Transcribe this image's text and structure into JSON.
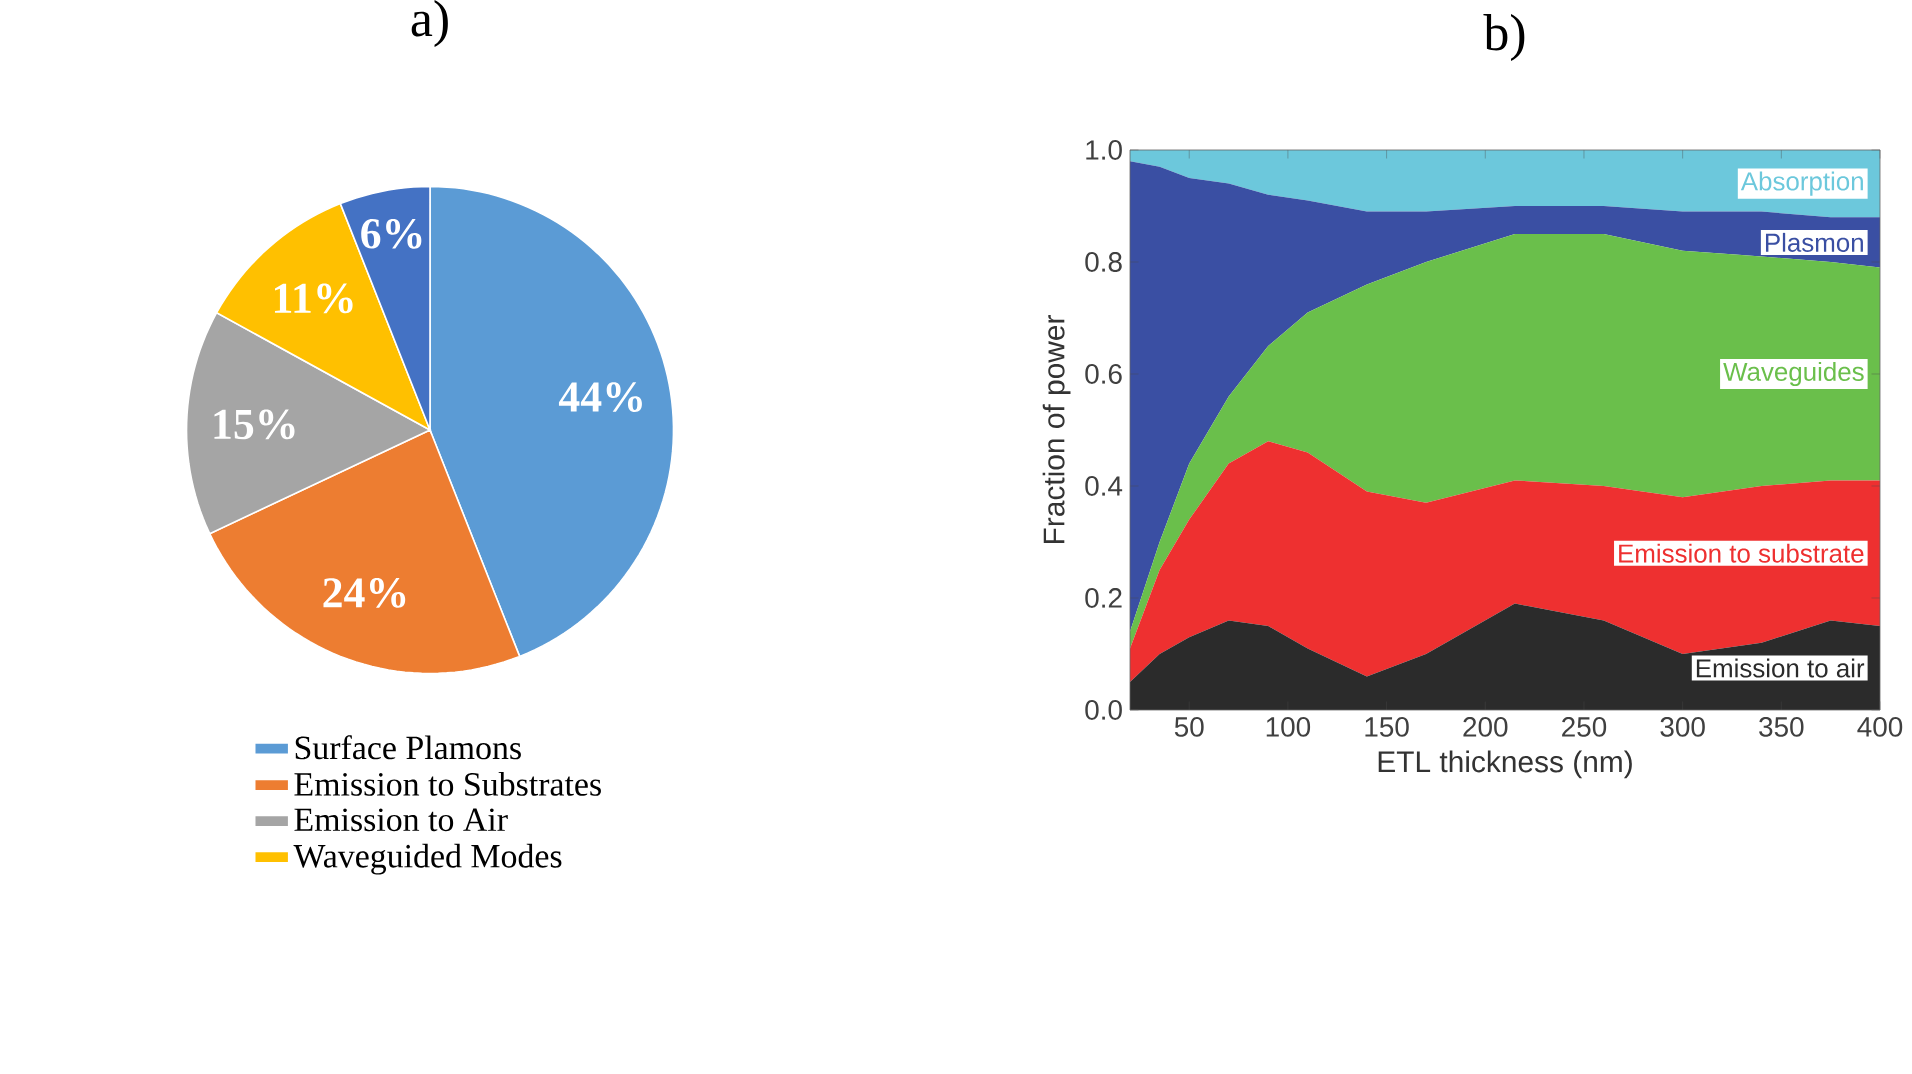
{
  "chart_data": [
    {
      "type": "pie",
      "title": "a)",
      "categories": [
        "Surface Plamons",
        "Emission to Substrates",
        "Emission to Air",
        "Waveguided Modes",
        null
      ],
      "values": [
        44,
        24,
        15,
        11,
        6
      ],
      "colors": [
        "#5b9bd5",
        "#ed7d31",
        "#a5a5a5",
        "#ffc000",
        "#4472c4"
      ],
      "value_labels": [
        "44%",
        "24%",
        "15%",
        "11%",
        "6%"
      ],
      "legend": "bottom"
    },
    {
      "type": "area",
      "title": "b)",
      "xlabel": "ETL thickness (nm)",
      "ylabel": "Fraction of power",
      "stacked": true,
      "x": [
        20,
        35,
        50,
        70,
        90,
        110,
        140,
        170,
        215,
        260,
        300,
        340,
        375,
        400
      ],
      "series": [
        {
          "name": "Emission to air",
          "color": "#2b2b2b",
          "values": [
            0.05,
            0.1,
            0.13,
            0.16,
            0.15,
            0.11,
            0.06,
            0.1,
            0.19,
            0.16,
            0.1,
            0.12,
            0.16,
            0.15
          ]
        },
        {
          "name": "Emission to substrate",
          "color": "#ee3030",
          "values": [
            0.06,
            0.15,
            0.21,
            0.28,
            0.33,
            0.35,
            0.33,
            0.27,
            0.22,
            0.24,
            0.28,
            0.28,
            0.25,
            0.26
          ]
        },
        {
          "name": "Waveguides",
          "color": "#6abf4b",
          "values": [
            0.03,
            0.05,
            0.1,
            0.12,
            0.17,
            0.25,
            0.37,
            0.43,
            0.44,
            0.45,
            0.44,
            0.41,
            0.39,
            0.38
          ]
        },
        {
          "name": "Plasmon",
          "color": "#3a4fa3",
          "values": [
            0.84,
            0.67,
            0.51,
            0.38,
            0.27,
            0.2,
            0.13,
            0.09,
            0.05,
            0.05,
            0.07,
            0.08,
            0.08,
            0.09
          ]
        },
        {
          "name": "Absorption",
          "color": "#6cc8dc",
          "values": [
            0.02,
            0.03,
            0.05,
            0.06,
            0.08,
            0.09,
            0.11,
            0.11,
            0.1,
            0.1,
            0.11,
            0.11,
            0.12,
            0.12
          ]
        }
      ],
      "xlim": [
        20,
        400
      ],
      "ylim": [
        0,
        1
      ],
      "xticks": [
        50,
        100,
        150,
        200,
        250,
        300,
        350,
        400
      ],
      "yticks": [
        {
          "value": 0,
          "label": "0.0"
        },
        {
          "value": 0.2,
          "label": "0.2"
        },
        {
          "value": 0.4,
          "label": "0.4"
        },
        {
          "value": 0.6,
          "label": "0.6"
        },
        {
          "value": 0.8,
          "label": "0.8"
        },
        {
          "value": 1,
          "label": "1.0"
        }
      ]
    }
  ]
}
